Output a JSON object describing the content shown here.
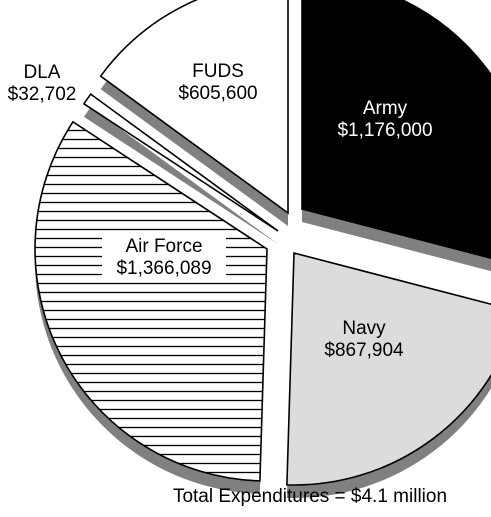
{
  "chart_data": {
    "type": "pie",
    "style": "exploded-3d-shadow",
    "slices": [
      {
        "name": "Army",
        "value_label": "$1,176,000",
        "value": 1176000,
        "fill": "#000000",
        "pattern": "solid"
      },
      {
        "name": "Navy",
        "value_label": "$867,904",
        "value": 867904,
        "fill": "#dcdcdc",
        "pattern": "solid"
      },
      {
        "name": "Air Force",
        "value_label": "$1,366,089",
        "value": 1366089,
        "fill": "#ffffff",
        "pattern": "horizontal-lines"
      },
      {
        "name": "DLA",
        "value_label": "$32,702",
        "value": 32702,
        "fill": "#ffffff",
        "pattern": "solid"
      },
      {
        "name": "FUDS",
        "value_label": "$605,600",
        "value": 605600,
        "fill": "#ffffff",
        "pattern": "solid"
      }
    ],
    "footer": "Total Expenditures = $4.1 million",
    "colors": {
      "outline": "#000000",
      "shadow": "#808080",
      "hatch": "#000000"
    }
  }
}
